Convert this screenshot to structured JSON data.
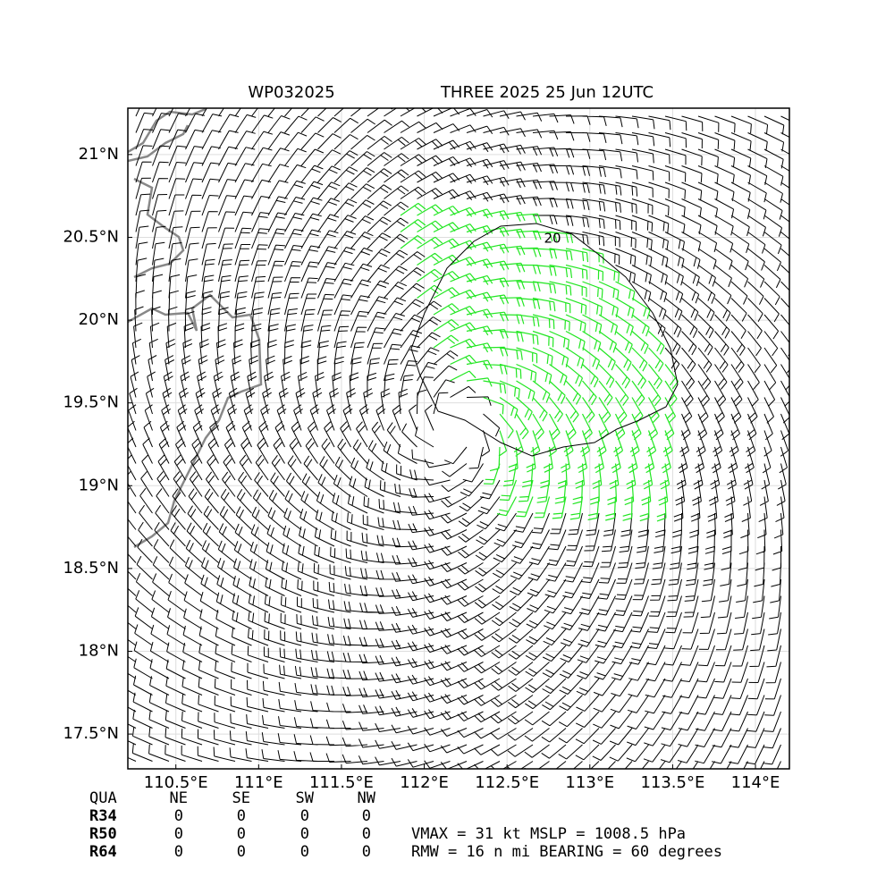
{
  "header": {
    "left_title": "WP032025",
    "right_title": "THREE 2025 25 Jun 12UTC"
  },
  "map": {
    "type": "wind-barb",
    "xlim": [
      110.21,
      114.205
    ],
    "ylim": [
      17.29,
      21.28
    ],
    "xticks": [
      {
        "value": 110.5,
        "label": "110.5°E"
      },
      {
        "value": 111,
        "label": "111°E"
      },
      {
        "value": 111.5,
        "label": "111.5°E"
      },
      {
        "value": 112,
        "label": "112°E"
      },
      {
        "value": 112.5,
        "label": "112.5°E"
      },
      {
        "value": 113,
        "label": "113°E"
      },
      {
        "value": 113.5,
        "label": "113.5°E"
      },
      {
        "value": 114,
        "label": "114°E"
      }
    ],
    "yticks": [
      {
        "value": 17.5,
        "label": "17.5°N"
      },
      {
        "value": 18,
        "label": "18°N"
      },
      {
        "value": 18.5,
        "label": "18.5°N"
      },
      {
        "value": 19,
        "label": "19°N"
      },
      {
        "value": 19.5,
        "label": "19.5°N"
      },
      {
        "value": 20,
        "label": "20°N"
      },
      {
        "value": 20.5,
        "label": "20.5°N"
      },
      {
        "value": 21,
        "label": "21°N"
      }
    ],
    "grid": true,
    "contour_label": "20"
  },
  "table": {
    "header": [
      "QUA",
      "NE",
      "SE",
      "SW",
      "NW"
    ],
    "rows": [
      [
        "R34",
        "0",
        "0",
        "0",
        "0"
      ],
      [
        "R50",
        "0",
        "0",
        "0",
        "0"
      ],
      [
        "R64",
        "0",
        "0",
        "0",
        "0"
      ]
    ]
  },
  "info": [
    "VMAX =  31 kt MSLP = 1008.5 hPa",
    "RMW =  16 n mi BEARING =  60 degrees"
  ]
}
